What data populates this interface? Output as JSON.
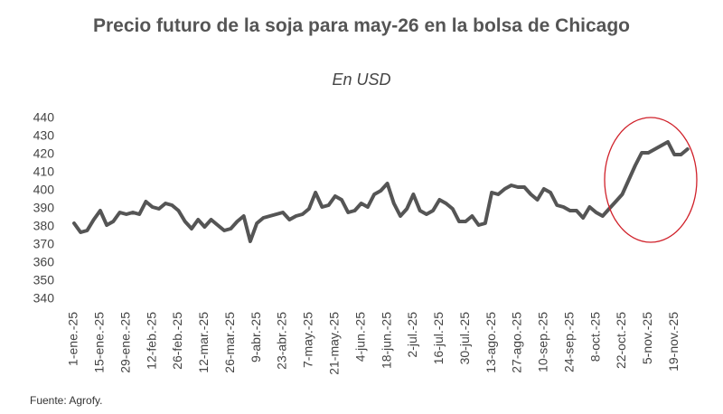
{
  "chart_data": {
    "type": "line",
    "title": "Precio futuro de la soja para may-26 en la bolsa de Chicago",
    "subtitle": "En USD",
    "source": "Fuente: Agrofy.",
    "categories": [
      "1-ene.-25",
      null,
      null,
      null,
      "15-ene.-25",
      null,
      null,
      null,
      "29-ene.-25",
      null,
      null,
      null,
      "12-feb.-25",
      null,
      null,
      null,
      "26-feb.-25",
      null,
      null,
      null,
      "12-mar.-25",
      null,
      null,
      null,
      "26-mar.-25",
      null,
      null,
      null,
      "9-abr.-25",
      null,
      null,
      null,
      "23-abr.-25",
      null,
      null,
      null,
      "7-may.-25",
      null,
      null,
      null,
      "21-may.-25",
      null,
      null,
      null,
      "4-jun.-25",
      null,
      null,
      null,
      "18-jun.-25",
      null,
      null,
      null,
      "2-jul.-25",
      null,
      null,
      null,
      "16-jul.-25",
      null,
      null,
      null,
      "30-jul.-25",
      null,
      null,
      null,
      "13-ago.-25",
      null,
      null,
      null,
      "27-ago.-25",
      null,
      null,
      null,
      "10-sep.-25",
      null,
      null,
      null,
      "24-sep.-25",
      null,
      null,
      null,
      "8-oct.-25",
      null,
      null,
      null,
      "22-oct.-25",
      null,
      null,
      null,
      "5-nov.-25",
      null,
      null,
      null,
      "19-nov.-25",
      null,
      null
    ],
    "values": [
      382,
      377,
      378,
      384,
      389,
      381,
      383,
      388,
      387,
      388,
      387,
      394,
      391,
      390,
      393,
      392,
      389,
      383,
      379,
      384,
      380,
      384,
      381,
      378,
      379,
      383,
      386,
      372,
      382,
      385,
      386,
      387,
      388,
      384,
      386,
      387,
      390,
      399,
      391,
      392,
      397,
      395,
      388,
      389,
      393,
      391,
      398,
      400,
      404,
      393,
      386,
      390,
      398,
      389,
      387,
      389,
      395,
      393,
      390,
      383,
      383,
      386,
      381,
      382,
      399,
      398,
      401,
      403,
      402,
      402,
      398,
      395,
      401,
      399,
      392,
      391,
      389,
      389,
      385,
      391,
      388,
      386,
      390,
      394,
      398,
      406,
      414,
      421,
      421,
      423,
      425,
      427,
      420,
      420,
      423
    ],
    "color": "#555555",
    "ylim": [
      340,
      440
    ],
    "yticks": [
      340,
      350,
      360,
      370,
      380,
      390,
      400,
      410,
      420,
      430,
      440
    ],
    "grid": false
  }
}
